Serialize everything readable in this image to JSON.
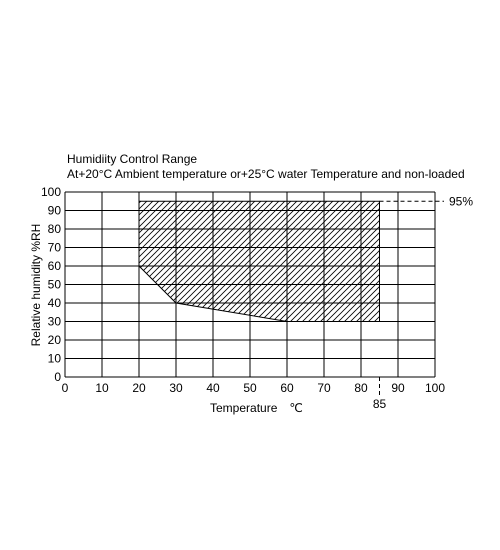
{
  "chart_data": {
    "type": "area",
    "title": "Humidiity Control Range",
    "subtitle": "At+20°C Ambient temperature or+25°C water Temperature and non-loaded",
    "xlabel": "Temperature",
    "xunit": "℃",
    "ylabel": "Relative humidity %RH",
    "xlim": [
      0,
      100
    ],
    "ylim": [
      0,
      100
    ],
    "grid": true,
    "x_ticks": [
      "0",
      "10",
      "20",
      "30",
      "40",
      "50",
      "60",
      "70",
      "80",
      "90",
      "100"
    ],
    "y_ticks": [
      "0",
      "10",
      "20",
      "30",
      "40",
      "50",
      "60",
      "70",
      "80",
      "90",
      "100"
    ],
    "region": {
      "boundary": [
        {
          "x": 20,
          "y": 95
        },
        {
          "x": 85,
          "y": 95
        },
        {
          "x": 85,
          "y": 30
        },
        {
          "x": 60,
          "y": 30
        },
        {
          "x": 30,
          "y": 40
        },
        {
          "x": 20,
          "y": 60
        }
      ]
    },
    "annotations": [
      {
        "text": "95%",
        "x": 85,
        "y": 95
      },
      {
        "text": "85",
        "x": 85,
        "y": 0
      }
    ]
  }
}
